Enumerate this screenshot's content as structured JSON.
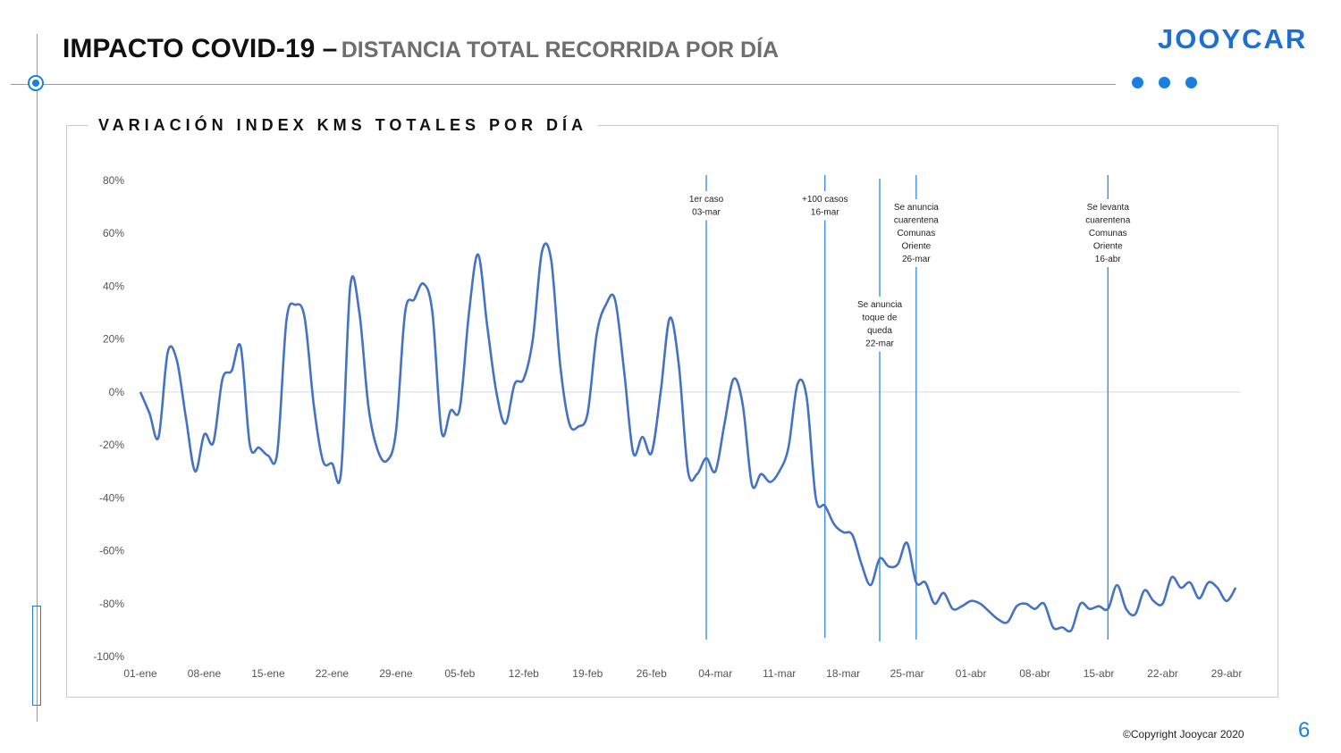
{
  "header": {
    "title_main": "IMPACTO COVID-19 –",
    "title_sub": "DISTANCIA TOTAL RECORRIDA POR DÍA",
    "logo": "JOOYCAR"
  },
  "footer": {
    "copyright": "©Copyright Jooycar 2020",
    "page_number": "6"
  },
  "colors": {
    "accent": "#1a7fe0",
    "line": "#4472c4",
    "logo": "#1f6fd0"
  },
  "chart_data": {
    "type": "line",
    "title": "VARIACIÓN INDEX KMS TOTALES POR DÍA",
    "yticks": [
      80,
      60,
      40,
      20,
      0,
      -20,
      -40,
      -60,
      -80,
      -100
    ],
    "ytick_labels": [
      "80%",
      "60%",
      "40%",
      "20%",
      "0%",
      "-20%",
      "-40%",
      "-60%",
      "-80%",
      "-100%"
    ],
    "ylim": [
      -100,
      80
    ],
    "xtick_labels": [
      "01-ene",
      "08-ene",
      "15-ene",
      "22-ene",
      "29-ene",
      "05-feb",
      "12-feb",
      "19-feb",
      "26-feb",
      "04-mar",
      "11-mar",
      "18-mar",
      "25-mar",
      "01-abr",
      "08-abr",
      "15-abr",
      "22-abr",
      "29-abr"
    ],
    "x_start": "2020-01-01",
    "grid": false,
    "zero_line": true,
    "series": [
      {
        "values": [
          0,
          -8,
          -17,
          15,
          12,
          -10,
          -30,
          -16,
          -19,
          5,
          8,
          17,
          -20,
          -21,
          -24,
          -23,
          27,
          33,
          28,
          -5,
          -26,
          -27,
          -30,
          40,
          30,
          -6,
          -22,
          -26,
          -15,
          30,
          35,
          41,
          30,
          -15,
          -7,
          -6,
          30,
          52,
          25,
          0,
          -12,
          3,
          5,
          20,
          53,
          50,
          10,
          -12,
          -13,
          -8,
          22,
          33,
          35,
          8,
          -23,
          -17,
          -23,
          0,
          28,
          10,
          -30,
          -31,
          -25,
          -30,
          -12,
          5,
          -5,
          -35,
          -31,
          -34,
          -30,
          -21,
          3,
          -2,
          -40,
          -43,
          -50,
          -53,
          -54,
          -65,
          -73,
          -63,
          -66,
          -65,
          -57,
          -72,
          -72,
          -80,
          -76,
          -82,
          -81,
          -79,
          -80,
          -83,
          -86,
          -87,
          -81,
          -80,
          -82,
          -80,
          -89,
          -89,
          -90,
          -80,
          -82,
          -81,
          -82,
          -73,
          -82,
          -84,
          -75,
          -79,
          -80,
          -70,
          -74,
          -72,
          -78,
          -72,
          -74,
          -79,
          -74
        ]
      }
    ],
    "events": [
      {
        "date_index": 62,
        "label_lines": [
          "1er caso",
          "03-mar"
        ]
      },
      {
        "date_index": 75,
        "label_lines": [
          "+100 casos",
          "16-mar"
        ]
      },
      {
        "date_index": 81,
        "label_lines": [
          "Se anuncia",
          "toque de",
          "queda",
          "22-mar"
        ]
      },
      {
        "date_index": 85,
        "label_lines": [
          "Se anuncia",
          "cuarentena",
          "Comunas",
          "Oriente",
          "26-mar"
        ]
      },
      {
        "date_index": 106,
        "label_lines": [
          "Se levanta",
          "cuarentena",
          "Comunas",
          "Oriente",
          "16-abr"
        ]
      }
    ]
  }
}
